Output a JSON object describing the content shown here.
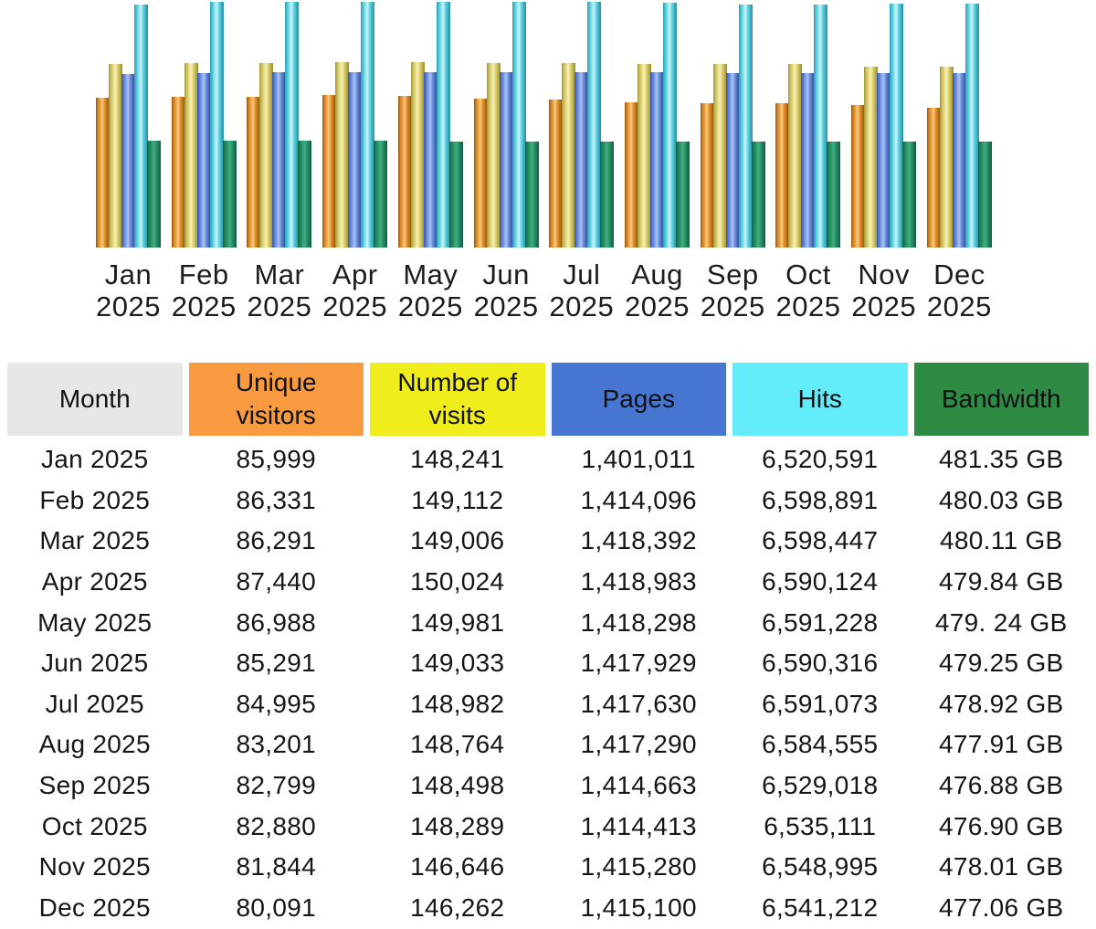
{
  "chart_data": {
    "type": "bar",
    "title": "",
    "xlabel": "",
    "ylabel": "",
    "grid": false,
    "legend_position": "table-header-as-legend",
    "categories": [
      "Jan 2025",
      "Feb 2025",
      "Mar 2025",
      "Apr 2025",
      "May 2025",
      "Jun 2025",
      "Jul 2025",
      "Aug 2025",
      "Sep 2025",
      "Oct 2025",
      "Nov 2025",
      "Dec 2025"
    ],
    "series": [
      {
        "key": "unique-visitors",
        "name": "Unique visitors",
        "color": "#f89b40",
        "values": [
          85999,
          86331,
          86291,
          87440,
          86988,
          85291,
          84995,
          83201,
          82799,
          82880,
          81844,
          80091
        ]
      },
      {
        "key": "number-of-visits",
        "name": "Number of visits",
        "color": "#efeb21",
        "values": [
          148241,
          149112,
          149006,
          150024,
          149981,
          149033,
          148982,
          148764,
          148498,
          148289,
          146646,
          146262
        ]
      },
      {
        "key": "pages",
        "name": "Pages",
        "color": "#4775d2",
        "values": [
          1401011,
          1414096,
          1418392,
          1418983,
          1418298,
          1417929,
          1417630,
          1417290,
          1414663,
          1414413,
          1415280,
          1415100
        ]
      },
      {
        "key": "hits",
        "name": "Hits",
        "color": "#63edfb",
        "values": [
          6520591,
          6598891,
          6598447,
          6590124,
          6591228,
          6590316,
          6591073,
          6584555,
          6529018,
          6535111,
          6548995,
          6541212
        ]
      },
      {
        "key": "bandwidth",
        "name": "Bandwidth",
        "unit": "GB",
        "color": "#2e8b44",
        "values": [
          481.35,
          480.03,
          480.11,
          479.84,
          479.24,
          479.25,
          478.92,
          477.91,
          476.88,
          476.9,
          478.01,
          477.06
        ]
      }
    ]
  },
  "table": {
    "columns": [
      {
        "label": "Month",
        "bg": "#e7e7e7"
      },
      {
        "label": "Unique visitors",
        "bg": "#f89b40"
      },
      {
        "label": "Number of visits",
        "bg": "#f0ed1c"
      },
      {
        "label": "Pages",
        "bg": "#4775d2"
      },
      {
        "label": "Hits",
        "bg": "#63edfb"
      },
      {
        "label": "Bandwidth",
        "bg": "#2e8b44"
      }
    ],
    "rows": [
      [
        "Jan 2025",
        "85,999",
        "148,241",
        "1,401,011",
        "6,520,591",
        "481.35 GB"
      ],
      [
        "Feb 2025",
        "86,331",
        "149,112",
        "1,414,096",
        "6,598,891",
        "480.03 GB"
      ],
      [
        "Mar 2025",
        "86,291",
        "149,006",
        "1,418,392",
        "6,598,447",
        "480.11 GB"
      ],
      [
        "Apr 2025",
        "87,440",
        "150,024",
        "1,418,983",
        "6,590,124",
        "479.84 GB"
      ],
      [
        "May 2025",
        "86,988",
        "149,981",
        "1,418,298",
        "6,591,228",
        "479. 24 GB"
      ],
      [
        "Jun 2025",
        "85,291",
        "149,033",
        "1,417,929",
        "6,590,316",
        "479.25 GB"
      ],
      [
        "Jul 2025",
        "84,995",
        "148,982",
        "1,417,630",
        "6,591,073",
        "478.92 GB"
      ],
      [
        "Aug 2025",
        "83,201",
        "148,764",
        "1,417,290",
        "6,584,555",
        "477.91 GB"
      ],
      [
        "Sep 2025",
        "82,799",
        "148,498",
        "1,414,663",
        "6,529,018",
        "476.88 GB"
      ],
      [
        "Oct 2025",
        "82,880",
        "148,289",
        "1,414,413",
        "6,535,111",
        "476.90 GB"
      ],
      [
        "Nov 2025",
        "81,844",
        "146,646",
        "1,415,280",
        "6,548,995",
        "478.01 GB"
      ],
      [
        "Dec 2025",
        "80,091",
        "146,262",
        "1,415,100",
        "6,541,212",
        "477.06 GB"
      ]
    ]
  }
}
